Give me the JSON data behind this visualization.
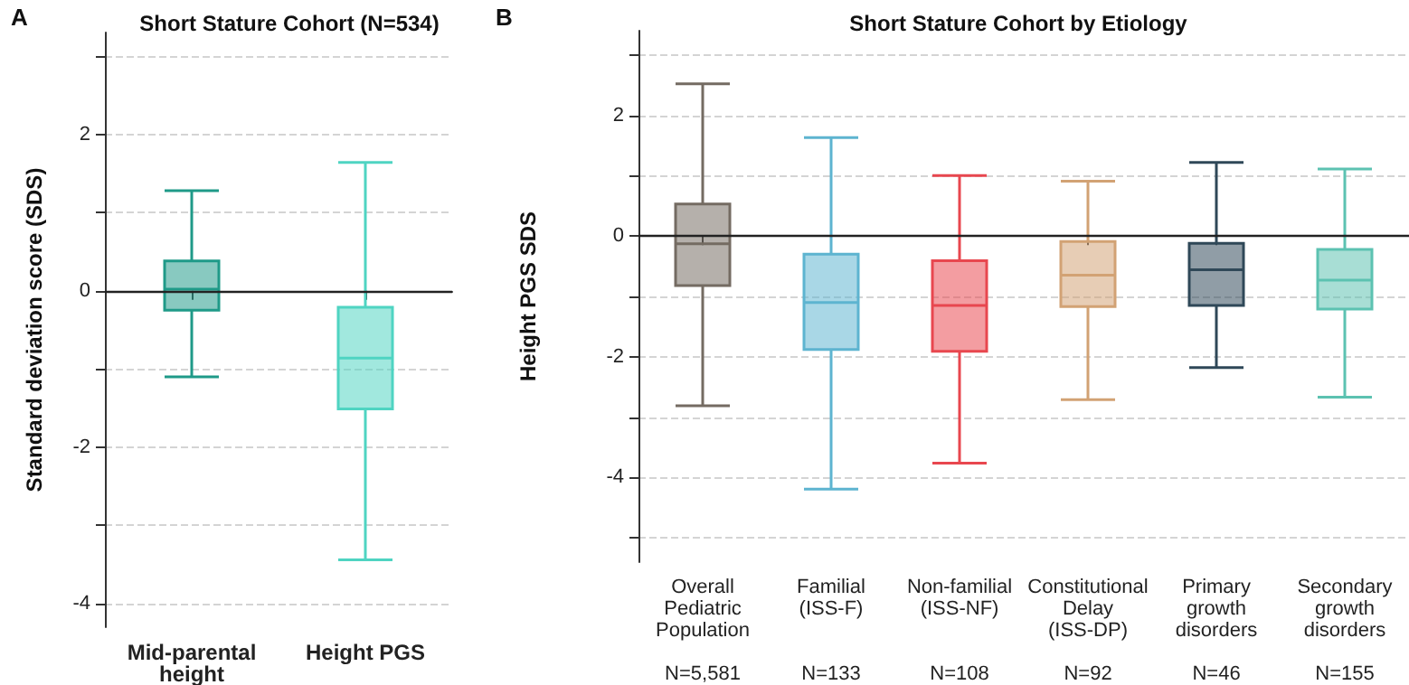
{
  "chart_data": [
    {
      "type": "box",
      "title": "Short Stature Cohort (N=534)",
      "ylabel": "Standard deviation score (SDS)",
      "annotations": [
        "A"
      ],
      "categories": [
        "Mid-parental\nheight",
        "Height PGS"
      ],
      "colors": [
        "#1f9a88",
        "#4fd4c2"
      ],
      "boxes": [
        {
          "low": -1.1,
          "q1": -0.25,
          "median": 0.02,
          "q3": 0.38,
          "high": 1.28
        },
        {
          "low": -3.44,
          "q1": -1.51,
          "median": -0.86,
          "q3": -0.21,
          "high": 1.64
        }
      ],
      "ylim": [
        -4.3,
        3.3
      ],
      "yticks": [
        -4,
        {
          "value": -3,
          "label": null
        },
        -2,
        {
          "value": -1,
          "label": null
        },
        0,
        {
          "value": 1,
          "label": null
        },
        2,
        {
          "value": 3,
          "label": null
        }
      ],
      "grid": "y",
      "ref_lines": [
        {
          "axis": "y",
          "value": 0,
          "color": "#222222",
          "line_style": "solid"
        }
      ]
    },
    {
      "type": "box",
      "title": "Short Stature Cohort by Etiology",
      "ylabel": "Height PGS SDS",
      "annotations": [
        "B"
      ],
      "categories": [
        "Overall\nPediatric\nPopulation\n\nN=5,581",
        "Familial\n(ISS-F)\n\n\nN=133",
        "Non-familial\n(ISS-NF)\n\n\nN=108",
        "Constitutional\nDelay\n(ISS-DP)\n\nN=92",
        "Primary\ngrowth\ndisorders\n\nN=46",
        "Secondary\ngrowth\ndisorders\n\nN=155"
      ],
      "colors": [
        "#746b62",
        "#5db4d0",
        "#e8474f",
        "#d2a274",
        "#2f4858",
        "#5cc2b1"
      ],
      "boxes": [
        {
          "low": -2.81,
          "q1": -0.82,
          "median": -0.13,
          "q3": 0.53,
          "high": 2.52
        },
        {
          "low": -4.19,
          "q1": -1.88,
          "median": -1.1,
          "q3": -0.3,
          "high": 1.63
        },
        {
          "low": -3.76,
          "q1": -1.91,
          "median": -1.15,
          "q3": -0.41,
          "high": 1.0
        },
        {
          "low": -2.71,
          "q1": -1.17,
          "median": -0.65,
          "q3": -0.09,
          "high": 0.91
        },
        {
          "low": -2.18,
          "q1": -1.15,
          "median": -0.56,
          "q3": -0.12,
          "high": 1.22
        },
        {
          "low": -2.67,
          "q1": -1.21,
          "median": -0.73,
          "q3": -0.22,
          "high": 1.11
        }
      ],
      "ylim": [
        -5.4,
        3.4
      ],
      "yticks": [
        {
          "value": -5,
          "label": null
        },
        -4,
        {
          "value": -3,
          "label": null
        },
        -2,
        {
          "value": -1,
          "label": null
        },
        0,
        {
          "value": 1,
          "label": null
        },
        2,
        {
          "value": 3,
          "label": null
        }
      ],
      "grid": "y",
      "ref_lines": [
        {
          "axis": "y",
          "value": 0,
          "color": "#222222",
          "line_style": "solid"
        }
      ]
    }
  ]
}
